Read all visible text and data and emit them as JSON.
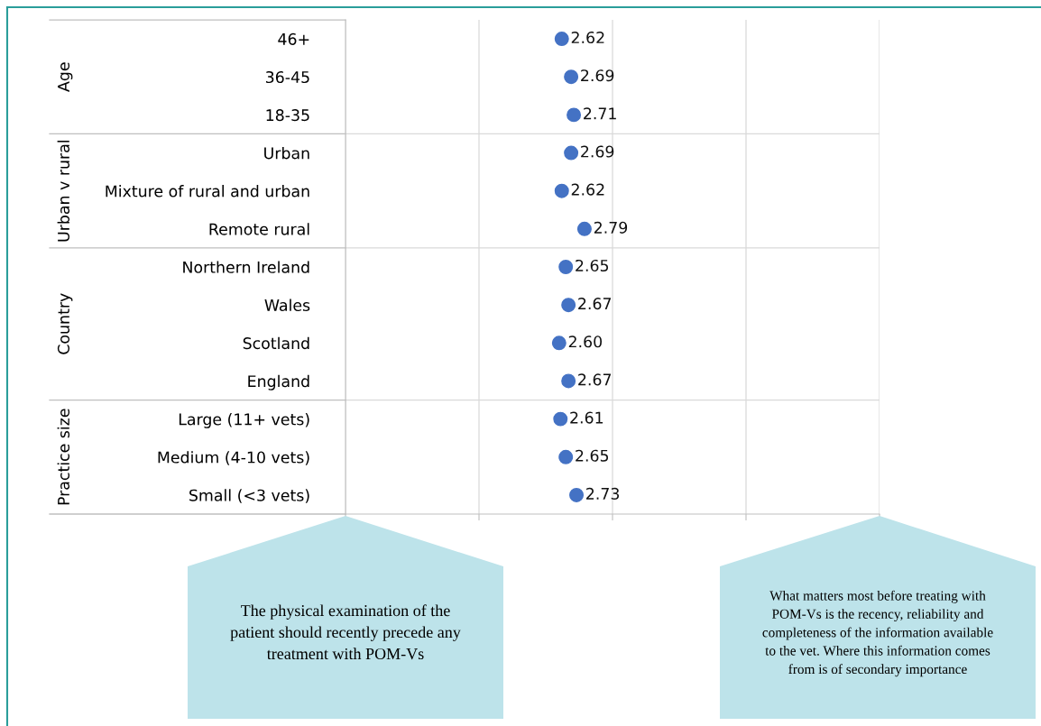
{
  "chart_data": {
    "type": "scatter",
    "orientation": "horizontal",
    "categories": [
      "46+",
      "36-45",
      "18-35",
      "Urban",
      "Mixture of rural and urban",
      "Remote rural",
      "Northern Ireland",
      "Wales",
      "Scotland",
      "England",
      "Large (11+ vets)",
      "Medium (4-10 vets)",
      "Small (<3 vets)"
    ],
    "series": [
      {
        "color": "#4472c4",
        "values": [
          2.62,
          2.69,
          2.71,
          2.69,
          2.62,
          2.79,
          2.65,
          2.67,
          2.6,
          2.67,
          2.61,
          2.65,
          2.73
        ],
        "value_labels": [
          "2.62",
          "2.69",
          "2.71",
          "2.69",
          "2.62",
          "2.79",
          "2.65",
          "2.67",
          "2.60",
          "2.67",
          "2.61",
          "2.65",
          "2.73"
        ]
      }
    ],
    "xlim": [
      1,
      5
    ],
    "xticks": [
      {
        "value": 1,
        "label": null
      },
      {
        "value": 2,
        "label": null
      },
      {
        "value": 3,
        "label": null
      },
      {
        "value": 4,
        "label": null
      },
      {
        "value": 5,
        "label": null
      }
    ],
    "grid": "x",
    "marker": "circle",
    "legend": false,
    "annotations": [
      "Age",
      "Urban v rural",
      "Country",
      "Practice size",
      "The physical examination of the\npatient should recently precede any\ntreatment with POM-Vs",
      "What matters most before treating with\nPOM-Vs is the recency, reliability and\ncompleteness of the information available\nto the vet. Where this information comes\nfrom is of secondary importance"
    ]
  }
}
